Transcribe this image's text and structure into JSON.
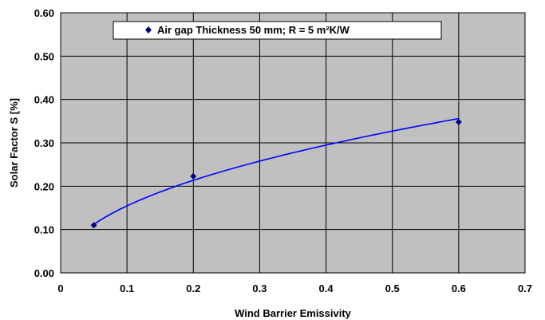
{
  "chart_data": {
    "type": "scatter",
    "xlabel": "Wind Barrier Emissivity",
    "ylabel": "Solar Factor S [%]",
    "xlim": [
      0,
      0.7
    ],
    "ylim": [
      0,
      0.6
    ],
    "x_ticks": [
      "0",
      "0.1",
      "0.2",
      "0.3",
      "0.4",
      "0.5",
      "0.6",
      "0.7"
    ],
    "y_ticks": [
      "0.00",
      "0.10",
      "0.20",
      "0.30",
      "0.40",
      "0.50",
      "0.60"
    ],
    "grid": true,
    "legend_position": "top-center",
    "series": [
      {
        "name": "Air gap Thickness 50 mm; R = 5 m²K/W",
        "marker": "diamond",
        "x": [
          0.05,
          0.2,
          0.6
        ],
        "y": [
          0.11,
          0.223,
          0.348
        ]
      }
    ],
    "trendline": {
      "type": "power",
      "x_range": [
        0.05,
        0.6
      ],
      "y_range": [
        0.112,
        0.356
      ]
    },
    "colors": {
      "plot_background": "#c0c0c0",
      "grid": "#000000",
      "marker": "#000080",
      "trendline": "#0000ff"
    }
  }
}
